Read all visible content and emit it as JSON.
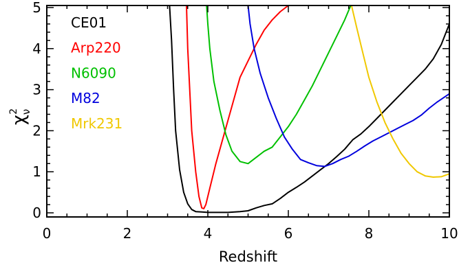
{
  "chart_data": {
    "type": "line",
    "xlabel": "Redshift",
    "ylabel": {
      "base": "χ",
      "sup": "2",
      "sub": "ν"
    },
    "xlim": [
      0,
      10
    ],
    "ylim": [
      -0.1,
      5.05
    ],
    "xticks": [
      0,
      2,
      4,
      6,
      8,
      10
    ],
    "yticks": [
      0,
      1,
      2,
      3,
      4,
      5
    ],
    "grid": false,
    "legend_position": "top-left",
    "series": [
      {
        "name": "CE01",
        "color": "#000000",
        "points": [
          [
            3.05,
            5.05
          ],
          [
            3.1,
            4.2
          ],
          [
            3.15,
            3.0
          ],
          [
            3.2,
            2.0
          ],
          [
            3.3,
            1.05
          ],
          [
            3.4,
            0.5
          ],
          [
            3.5,
            0.22
          ],
          [
            3.6,
            0.08
          ],
          [
            3.7,
            0.03
          ],
          [
            3.85,
            0.02
          ],
          [
            4.0,
            0.01
          ],
          [
            4.2,
            0.01
          ],
          [
            4.5,
            0.01
          ],
          [
            4.8,
            0.03
          ],
          [
            5.0,
            0.05
          ],
          [
            5.2,
            0.12
          ],
          [
            5.4,
            0.18
          ],
          [
            5.6,
            0.22
          ],
          [
            5.8,
            0.35
          ],
          [
            6.0,
            0.5
          ],
          [
            6.2,
            0.62
          ],
          [
            6.4,
            0.75
          ],
          [
            6.6,
            0.9
          ],
          [
            6.8,
            1.05
          ],
          [
            7.0,
            1.2
          ],
          [
            7.2,
            1.37
          ],
          [
            7.4,
            1.55
          ],
          [
            7.6,
            1.78
          ],
          [
            7.8,
            1.92
          ],
          [
            8.0,
            2.1
          ],
          [
            8.2,
            2.3
          ],
          [
            8.4,
            2.5
          ],
          [
            8.6,
            2.7
          ],
          [
            8.8,
            2.9
          ],
          [
            9.0,
            3.1
          ],
          [
            9.2,
            3.3
          ],
          [
            9.4,
            3.5
          ],
          [
            9.6,
            3.75
          ],
          [
            9.8,
            4.1
          ],
          [
            10.0,
            4.6
          ]
        ]
      },
      {
        "name": "Arp220",
        "color": "#ff0000",
        "points": [
          [
            3.47,
            5.05
          ],
          [
            3.5,
            4.0
          ],
          [
            3.55,
            3.0
          ],
          [
            3.6,
            2.0
          ],
          [
            3.7,
            1.0
          ],
          [
            3.78,
            0.4
          ],
          [
            3.85,
            0.12
          ],
          [
            3.9,
            0.1
          ],
          [
            3.95,
            0.2
          ],
          [
            4.05,
            0.6
          ],
          [
            4.2,
            1.2
          ],
          [
            4.4,
            1.9
          ],
          [
            4.6,
            2.6
          ],
          [
            4.8,
            3.3
          ],
          [
            5.0,
            3.7
          ],
          [
            5.2,
            4.1
          ],
          [
            5.4,
            4.45
          ],
          [
            5.6,
            4.7
          ],
          [
            5.8,
            4.9
          ],
          [
            6.0,
            5.05
          ]
        ]
      },
      {
        "name": "N6090",
        "color": "#00c000",
        "points": [
          [
            3.97,
            5.05
          ],
          [
            4.0,
            4.6
          ],
          [
            4.05,
            4.0
          ],
          [
            4.15,
            3.2
          ],
          [
            4.3,
            2.5
          ],
          [
            4.45,
            1.9
          ],
          [
            4.6,
            1.5
          ],
          [
            4.8,
            1.25
          ],
          [
            5.0,
            1.2
          ],
          [
            5.2,
            1.35
          ],
          [
            5.4,
            1.5
          ],
          [
            5.6,
            1.6
          ],
          [
            5.8,
            1.85
          ],
          [
            6.0,
            2.1
          ],
          [
            6.2,
            2.4
          ],
          [
            6.4,
            2.75
          ],
          [
            6.6,
            3.1
          ],
          [
            6.8,
            3.5
          ],
          [
            7.0,
            3.9
          ],
          [
            7.2,
            4.3
          ],
          [
            7.4,
            4.7
          ],
          [
            7.55,
            5.05
          ]
        ]
      },
      {
        "name": "M82",
        "color": "#0000dd",
        "points": [
          [
            5.0,
            5.05
          ],
          [
            5.05,
            4.6
          ],
          [
            5.15,
            4.0
          ],
          [
            5.3,
            3.4
          ],
          [
            5.5,
            2.8
          ],
          [
            5.7,
            2.3
          ],
          [
            5.9,
            1.85
          ],
          [
            6.1,
            1.55
          ],
          [
            6.3,
            1.3
          ],
          [
            6.5,
            1.22
          ],
          [
            6.7,
            1.15
          ],
          [
            6.9,
            1.13
          ],
          [
            7.1,
            1.2
          ],
          [
            7.3,
            1.3
          ],
          [
            7.5,
            1.38
          ],
          [
            7.7,
            1.5
          ],
          [
            7.9,
            1.63
          ],
          [
            8.1,
            1.75
          ],
          [
            8.3,
            1.85
          ],
          [
            8.5,
            1.95
          ],
          [
            8.7,
            2.05
          ],
          [
            8.9,
            2.15
          ],
          [
            9.1,
            2.25
          ],
          [
            9.3,
            2.38
          ],
          [
            9.5,
            2.55
          ],
          [
            9.7,
            2.7
          ],
          [
            9.85,
            2.8
          ],
          [
            10.0,
            2.9
          ]
        ]
      },
      {
        "name": "Mrk231",
        "color": "#f0c800",
        "points": [
          [
            7.57,
            5.05
          ],
          [
            7.7,
            4.5
          ],
          [
            7.85,
            3.9
          ],
          [
            8.0,
            3.3
          ],
          [
            8.2,
            2.7
          ],
          [
            8.4,
            2.2
          ],
          [
            8.6,
            1.8
          ],
          [
            8.8,
            1.45
          ],
          [
            9.0,
            1.2
          ],
          [
            9.2,
            1.0
          ],
          [
            9.4,
            0.9
          ],
          [
            9.6,
            0.87
          ],
          [
            9.8,
            0.88
          ],
          [
            10.0,
            0.95
          ]
        ]
      }
    ]
  }
}
